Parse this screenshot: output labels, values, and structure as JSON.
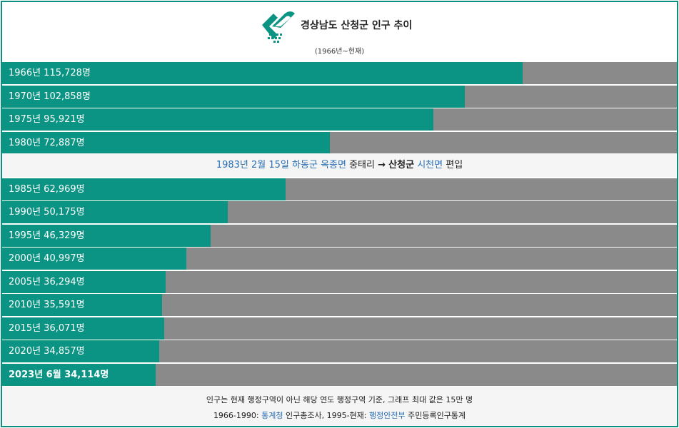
{
  "header": {
    "title": "경상남도 산청군 인구 추이",
    "subtitle": "(1966년~현재)"
  },
  "colors": {
    "bar_fill": "#0b9483",
    "bar_track": "#8a8a8a",
    "border": "#0b8f7f",
    "link": "#2a6fb3"
  },
  "chart_data": {
    "type": "bar",
    "orientation": "horizontal",
    "title": "경상남도 산청군 인구 추이",
    "subtitle": "(1966년~현재)",
    "xlim": [
      0,
      150000
    ],
    "categories": [
      "1966년",
      "1970년",
      "1975년",
      "1980년",
      "1985년",
      "1990년",
      "1995년",
      "2000년",
      "2005년",
      "2010년",
      "2015년",
      "2020년",
      "2023년 6월"
    ],
    "values": [
      115728,
      102858,
      95921,
      72887,
      62969,
      50175,
      46329,
      40997,
      36294,
      35591,
      36071,
      34857,
      34114
    ],
    "labels": [
      "1966년 115,728명",
      "1970년 102,858명",
      "1975년 95,921명",
      "1980년 72,887명",
      "1985년 62,969명",
      "1990년 50,175명",
      "1995년 46,329명",
      "2000년 40,997명",
      "2005년 36,294명",
      "2010년 35,591명",
      "2015년 36,071명",
      "2020년 34,857명",
      "2023년 6월 34,114명"
    ],
    "annotation": {
      "date": "1983년 2월 15일",
      "from_county": "하동군",
      "from_town": "옥종면",
      "village": "중태리",
      "arrow": "→",
      "to_county": "산청군",
      "to_town": "시천면",
      "action": "편입"
    }
  },
  "footer": {
    "note": "인구는 현재 행정구역이 아닌 해당 연도 행정구역 기준, 그래프 최대 값은 15만 명",
    "source_prefix": "1966-1990: ",
    "source_link1": "통계청",
    "source_middle": " 인구총조사, 1995-현재: ",
    "source_link2": "행정안전부",
    "source_suffix": " 주민등록인구통계"
  }
}
